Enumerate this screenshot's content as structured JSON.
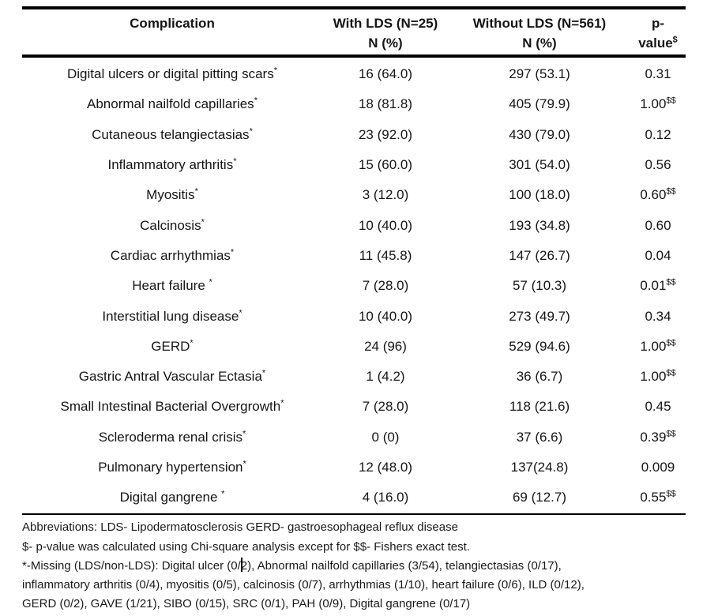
{
  "table": {
    "columns": {
      "complication": "Complication",
      "with_lds": {
        "line1": "With LDS (N=25)",
        "line2": "N (%)"
      },
      "without_lds": {
        "line1": "Without LDS (N=561)",
        "line2": "N (%)"
      },
      "pvalue": {
        "line1": "p-",
        "line2": "value",
        "sup": "$"
      }
    },
    "rows": [
      {
        "name": "Digital ulcers or digital pitting scars",
        "sup": "*",
        "with_lds": "16 (64.0)",
        "without_lds": "297 (53.1)",
        "p": "0.31",
        "p_sup": ""
      },
      {
        "name": "Abnormal nailfold capillaries",
        "sup": "*",
        "with_lds": "18 (81.8)",
        "without_lds": "405 (79.9)",
        "p": "1.00",
        "p_sup": "$$"
      },
      {
        "name": "Cutaneous telangiectasias",
        "sup": "*",
        "with_lds": "23 (92.0)",
        "without_lds": "430 (79.0)",
        "p": "0.12",
        "p_sup": ""
      },
      {
        "name": "Inflammatory arthritis",
        "sup": "*",
        "with_lds": "15 (60.0)",
        "without_lds": "301 (54.0)",
        "p": "0.56",
        "p_sup": ""
      },
      {
        "name": "Myositis",
        "sup": "*",
        "with_lds": "3 (12.0)",
        "without_lds": "100 (18.0)",
        "p": "0.60",
        "p_sup": "$$"
      },
      {
        "name": "Calcinosis",
        "sup": "*",
        "with_lds": "10 (40.0)",
        "without_lds": "193 (34.8)",
        "p": "0.60",
        "p_sup": ""
      },
      {
        "name": "Cardiac arrhythmias",
        "sup": "*",
        "with_lds": "11 (45.8)",
        "without_lds": "147 (26.7)",
        "p": "0.04",
        "p_sup": ""
      },
      {
        "name": "Heart failure ",
        "sup": "*",
        "with_lds": "7 (28.0)",
        "without_lds": "57 (10.3)",
        "p": "0.01",
        "p_sup": "$$"
      },
      {
        "name": "Interstitial lung disease",
        "sup": "*",
        "with_lds": "10 (40.0)",
        "without_lds": "273 (49.7)",
        "p": "0.34",
        "p_sup": ""
      },
      {
        "name": "GERD",
        "sup": "*",
        "with_lds": "24 (96)",
        "without_lds": "529 (94.6)",
        "p": "1.00",
        "p_sup": "$$"
      },
      {
        "name": "Gastric Antral Vascular Ectasia",
        "sup": "*",
        "with_lds": "1 (4.2)",
        "without_lds": "36 (6.7)",
        "p": "1.00",
        "p_sup": "$$"
      },
      {
        "name": "Small Intestinal Bacterial Overgrowth",
        "sup": "*",
        "with_lds": "7 (28.0)",
        "without_lds": "118 (21.6)",
        "p": "0.45",
        "p_sup": ""
      },
      {
        "name": "Scleroderma renal crisis",
        "sup": "*",
        "with_lds": "0 (0)",
        "without_lds": "37 (6.6)",
        "p": "0.39",
        "p_sup": "$$"
      },
      {
        "name": "Pulmonary hypertension",
        "sup": "*",
        "with_lds": "12 (48.0)",
        "without_lds": "137(24.8)",
        "p": "0.009",
        "p_sup": ""
      },
      {
        "name": "Digital gangrene ",
        "sup": "*",
        "with_lds": "4 (16.0)",
        "without_lds": "69 (12.7)",
        "p": "0.55",
        "p_sup": "$$"
      }
    ]
  },
  "footnotes": {
    "abbreviations": "Abbreviations: LDS- Lipodermatosclerosis GERD- gastroesophageal reflux disease",
    "dollar_note": "$- p-value was calculated using Chi-square analysis except for $$- Fishers exact test.",
    "missing_line1_pre": "*-Missing (LDS/non-LDS): Digital ulcer (0/",
    "missing_line1_post": "2), Abnormal nailfold capillaries (3/54), telangiectasias (0/17),",
    "missing_line2": "inflammatory arthritis (0/4), myositis (0/5), calcinosis (0/7), arrhythmias (1/10), heart failure (0/6), ILD (0/12),",
    "missing_line3": "GERD (0/2), GAVE (1/21), SIBO (0/15), SRC (0/1), PAH (0/9), Digital gangrene (0/17)"
  }
}
